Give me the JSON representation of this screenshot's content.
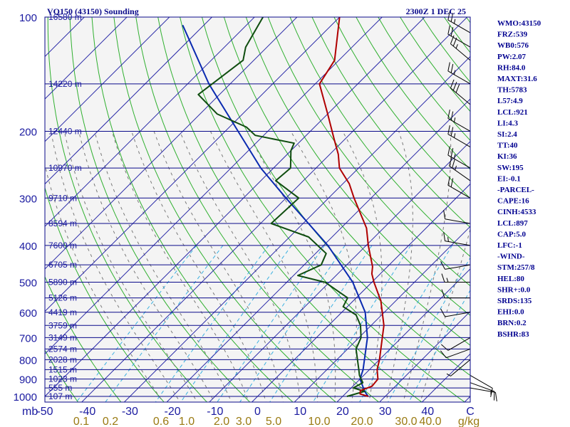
{
  "title_left": "VQ150 (43150) Sounding",
  "title_right": "2300Z  1 DEC 25",
  "indices": [
    "WMO:43150",
    "FRZ:539",
    "WB0:576",
    "PW:2.07",
    "RH:84.0",
    "MAXT:31.6",
    "TH:5783",
    "L57:4.9",
    "LCL:921",
    "LI:4.3",
    "SI:2.4",
    "TT:40",
    "KI:36",
    "SW:195",
    "EI:-0.1",
    "-PARCEL-",
    "CAPE:16",
    "CINH:4533",
    "LCL:897",
    "CAP:5.0",
    "LFC:-1",
    "-WIND-",
    "STM:257/8",
    "HEL:80",
    "SHR+:0.0",
    "SRDS:135",
    "EHI:0.0",
    "BRN:0.2",
    "BSHR:83"
  ],
  "colors": {
    "background": "#ffffff",
    "plot_bg": "#f4f4f4",
    "isobar": "#0a0a8a",
    "isotherm": "#2a2aa8",
    "dry_adiabat": "#30b030",
    "moist_adiabat": "#7a7a7a",
    "mixing_ratio": "#3ab0e0",
    "temperature": "#b00000",
    "dewpoint": "#0f4d0f",
    "parcel": "#0a2ab0",
    "wind": "#000000",
    "text": "#000090",
    "mix_label": "#9a7a12"
  },
  "chart_data": {
    "type": "skew-t",
    "pressure_ticks": [
      "100",
      "200",
      "300",
      "400",
      "500",
      "600",
      "700",
      "800",
      "900",
      "1000"
    ],
    "height_levels": [
      {
        "p": 100,
        "label": "16580 m"
      },
      {
        "p": 150,
        "label": "14220 m"
      },
      {
        "p": 200,
        "label": "12440 m"
      },
      {
        "p": 250,
        "label": "10970 m"
      },
      {
        "p": 300,
        "label": "9710 m"
      },
      {
        "p": 350,
        "label": "8594 m"
      },
      {
        "p": 400,
        "label": "7600 m"
      },
      {
        "p": 450,
        "label": "6705 m"
      },
      {
        "p": 500,
        "label": "5890 m"
      },
      {
        "p": 550,
        "label": "5126 m"
      },
      {
        "p": 600,
        "label": "4419 m"
      },
      {
        "p": 650,
        "label": "3759 m"
      },
      {
        "p": 700,
        "label": "3149 m"
      },
      {
        "p": 750,
        "label": "2574 m"
      },
      {
        "p": 800,
        "label": "2028 m"
      },
      {
        "p": 850,
        "label": "1515 m"
      },
      {
        "p": 900,
        "label": "1023 m"
      },
      {
        "p": 950,
        "label": "555 m"
      },
      {
        "p": 1000,
        "label": "107 m"
      }
    ],
    "temp_ticks": [
      "-50",
      "-40",
      "-30",
      "-20",
      "-10",
      "0",
      "10",
      "20",
      "30",
      "40",
      "C"
    ],
    "temp_range_at_surface": [
      -50,
      50
    ],
    "unit_left": "mb",
    "mixing_ratio_ticks": [
      "0.1",
      "0.2",
      "0.6",
      "1.0",
      "2.0",
      "3.0",
      "5.0",
      "10.0",
      "20.0",
      "30.0",
      "40.0"
    ],
    "mixing_ratio_unit": "g/kg",
    "temperature_profile": [
      {
        "p": 1000,
        "t": 26.0
      },
      {
        "p": 985,
        "t": 23.5
      },
      {
        "p": 965,
        "t": 22.8
      },
      {
        "p": 940,
        "t": 24.5
      },
      {
        "p": 900,
        "t": 24.2
      },
      {
        "p": 850,
        "t": 21.8
      },
      {
        "p": 800,
        "t": 20.0
      },
      {
        "p": 700,
        "t": 15.5
      },
      {
        "p": 650,
        "t": 13.0
      },
      {
        "p": 600,
        "t": 9.5
      },
      {
        "p": 560,
        "t": 6.5
      },
      {
        "p": 500,
        "t": 0.5
      },
      {
        "p": 475,
        "t": -2.0
      },
      {
        "p": 455,
        "t": -3.5
      },
      {
        "p": 400,
        "t": -9.5
      },
      {
        "p": 360,
        "t": -14.0
      },
      {
        "p": 300,
        "t": -24.0
      },
      {
        "p": 275,
        "t": -28.5
      },
      {
        "p": 250,
        "t": -34.5
      },
      {
        "p": 230,
        "t": -38.0
      },
      {
        "p": 210,
        "t": -42.5
      },
      {
        "p": 180,
        "t": -50.0
      },
      {
        "p": 150,
        "t": -59.0
      },
      {
        "p": 130,
        "t": -61.0
      },
      {
        "p": 100,
        "t": -70.0
      }
    ],
    "dewpoint_profile": [
      {
        "p": 1000,
        "t": 21.0
      },
      {
        "p": 970,
        "t": 24.0
      },
      {
        "p": 950,
        "t": 20.5
      },
      {
        "p": 920,
        "t": 21.5
      },
      {
        "p": 880,
        "t": 19.0
      },
      {
        "p": 850,
        "t": 17.5
      },
      {
        "p": 750,
        "t": 12.0
      },
      {
        "p": 700,
        "t": 10.5
      },
      {
        "p": 650,
        "t": 7.5
      },
      {
        "p": 610,
        "t": 4.0
      },
      {
        "p": 580,
        "t": -1.0
      },
      {
        "p": 550,
        "t": -2.0
      },
      {
        "p": 500,
        "t": -11.0
      },
      {
        "p": 480,
        "t": -19.0
      },
      {
        "p": 450,
        "t": -16.0
      },
      {
        "p": 420,
        "t": -17.5
      },
      {
        "p": 380,
        "t": -25.5
      },
      {
        "p": 350,
        "t": -37.5
      },
      {
        "p": 300,
        "t": -37.0
      },
      {
        "p": 270,
        "t": -46.5
      },
      {
        "p": 250,
        "t": -46.0
      },
      {
        "p": 225,
        "t": -50.0
      },
      {
        "p": 215,
        "t": -51.0
      },
      {
        "p": 205,
        "t": -62.0
      },
      {
        "p": 195,
        "t": -66.0
      },
      {
        "p": 180,
        "t": -76.0
      },
      {
        "p": 160,
        "t": -85.0
      },
      {
        "p": 130,
        "t": -82.5
      },
      {
        "p": 120,
        "t": -85.0
      },
      {
        "p": 100,
        "t": -88.0
      }
    ],
    "parcel_profile": [
      {
        "p": 1000,
        "t": 26.0
      },
      {
        "p": 970,
        "t": 24.0
      },
      {
        "p": 900,
        "t": 20.0
      },
      {
        "p": 850,
        "t": 18.5
      },
      {
        "p": 700,
        "t": 12.0
      },
      {
        "p": 600,
        "t": 5.5
      },
      {
        "p": 500,
        "t": -4.5
      },
      {
        "p": 400,
        "t": -19.0
      },
      {
        "p": 300,
        "t": -40.0
      },
      {
        "p": 250,
        "t": -53.0
      },
      {
        "p": 200,
        "t": -67.0
      },
      {
        "p": 150,
        "t": -85.0
      },
      {
        "p": 105,
        "t": -105.0
      }
    ],
    "winds": [
      {
        "p": 950,
        "dir": 100,
        "spd": 10
      },
      {
        "p": 920,
        "dir": 110,
        "spd": 15
      },
      {
        "p": 880,
        "dir": 120,
        "spd": 10
      },
      {
        "p": 800,
        "dir": 230,
        "spd": 5
      },
      {
        "p": 750,
        "dir": 250,
        "spd": 10
      },
      {
        "p": 700,
        "dir": 240,
        "spd": 10
      },
      {
        "p": 600,
        "dir": 260,
        "spd": 10
      },
      {
        "p": 550,
        "dir": 270,
        "spd": 10
      },
      {
        "p": 500,
        "dir": 270,
        "spd": 15
      },
      {
        "p": 450,
        "dir": 260,
        "spd": 10
      },
      {
        "p": 400,
        "dir": 280,
        "spd": 15
      },
      {
        "p": 350,
        "dir": 280,
        "spd": 10
      },
      {
        "p": 300,
        "dir": 300,
        "spd": 20
      },
      {
        "p": 270,
        "dir": 305,
        "spd": 25
      },
      {
        "p": 250,
        "dir": 300,
        "spd": 25
      },
      {
        "p": 220,
        "dir": 300,
        "spd": 25
      },
      {
        "p": 200,
        "dir": 300,
        "spd": 25
      },
      {
        "p": 170,
        "dir": 310,
        "spd": 30
      },
      {
        "p": 150,
        "dir": 300,
        "spd": 25
      },
      {
        "p": 130,
        "dir": 310,
        "spd": 25
      },
      {
        "p": 120,
        "dir": 300,
        "spd": 20
      },
      {
        "p": 110,
        "dir": 300,
        "spd": 25
      }
    ]
  }
}
